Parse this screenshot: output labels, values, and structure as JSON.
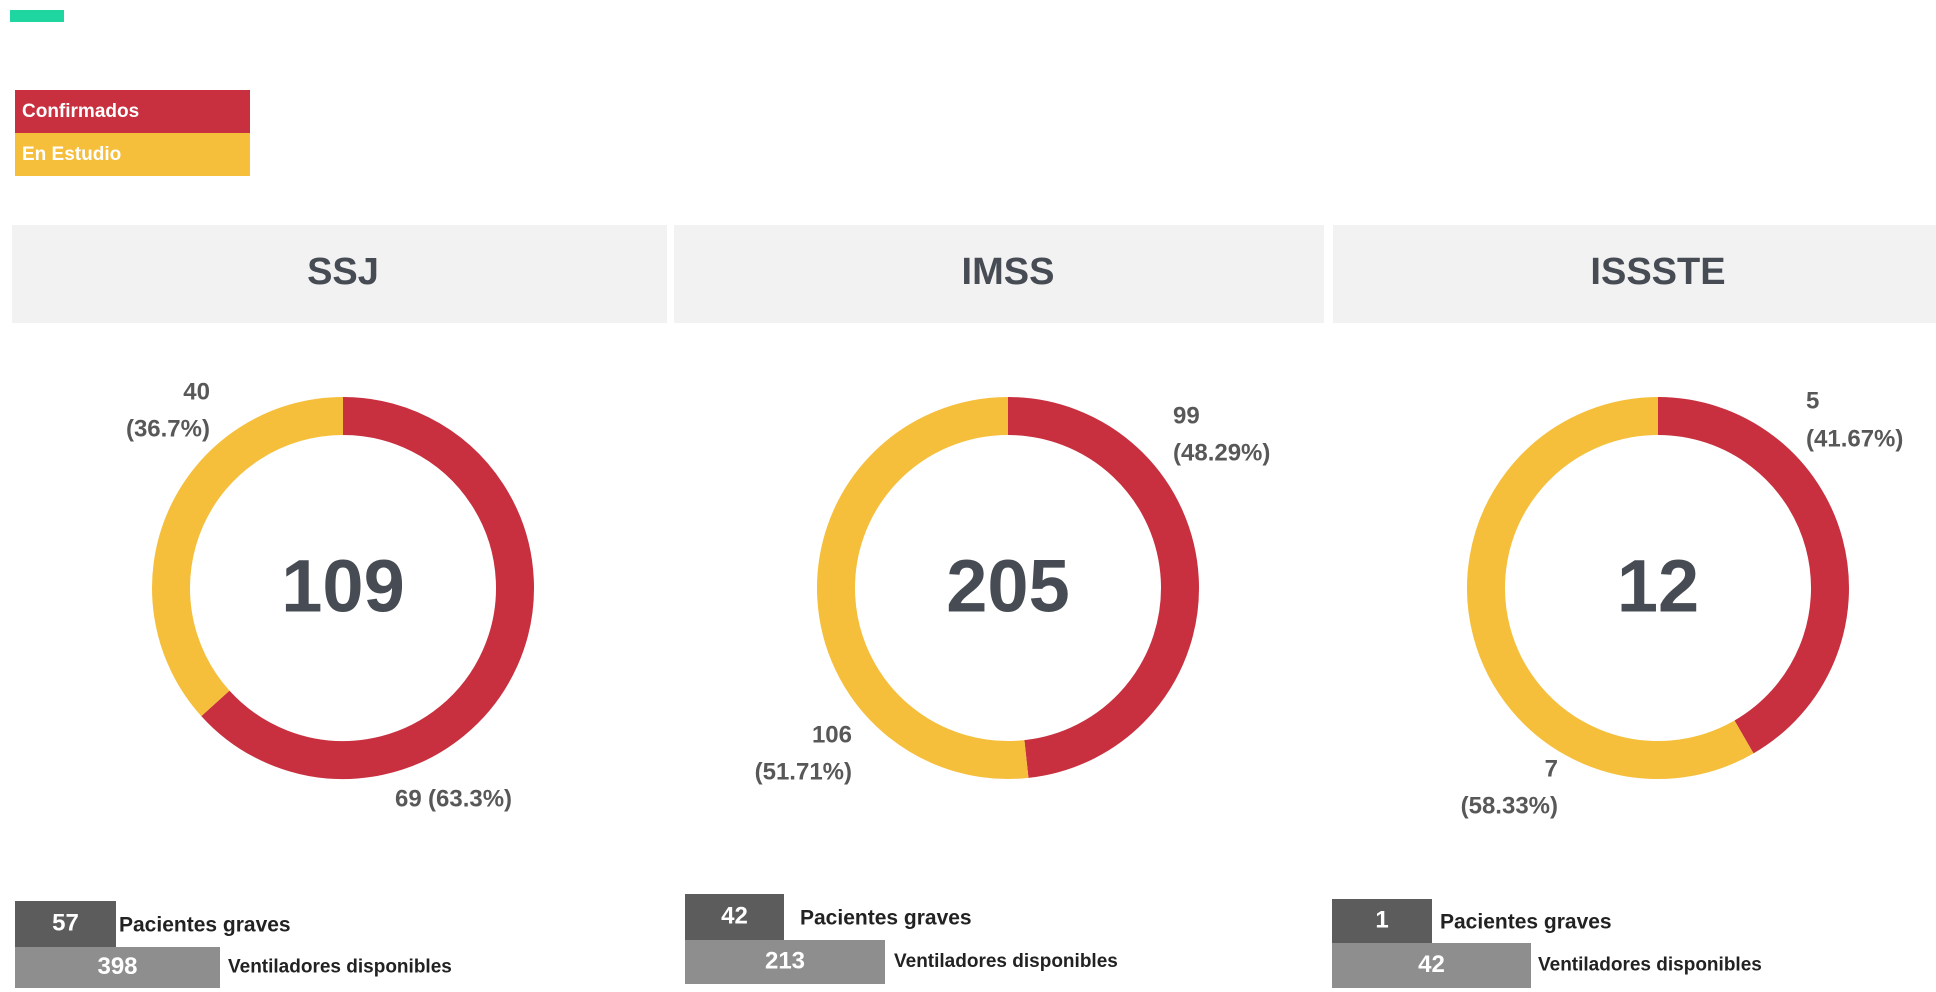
{
  "legend": [
    {
      "name": "Confirmados",
      "color": "#c8303f"
    },
    {
      "name": "En Estudio",
      "color": "#f5bf3c"
    }
  ],
  "chart_data": [
    {
      "type": "donut",
      "title": "SSJ",
      "total": 109,
      "values": [
        69,
        40
      ],
      "percentages": [
        63.3,
        36.7
      ],
      "percent_labels": [
        "(63.3%)",
        "(36.7%)"
      ],
      "stats": [
        {
          "value": 57,
          "label": "Pacientes graves"
        },
        {
          "value": 398,
          "label": "Ventiladores disponibles"
        }
      ]
    },
    {
      "type": "donut",
      "title": "IMSS",
      "total": 205,
      "values": [
        99,
        106
      ],
      "percentages": [
        48.29,
        51.71
      ],
      "percent_labels": [
        "(48.29%)",
        "(51.71%)"
      ],
      "stats": [
        {
          "value": 42,
          "label": "Pacientes graves"
        },
        {
          "value": 213,
          "label": "Ventiladores disponibles"
        }
      ]
    },
    {
      "type": "donut",
      "title": "ISSSTE",
      "total": 12,
      "values": [
        5,
        7
      ],
      "percentages": [
        41.67,
        58.33
      ],
      "percent_labels": [
        "(41.67%)",
        "(58.33%)"
      ],
      "stats": [
        {
          "value": 1,
          "label": "Pacientes graves"
        },
        {
          "value": 42,
          "label": "Ventiladores disponibles"
        }
      ]
    }
  ]
}
